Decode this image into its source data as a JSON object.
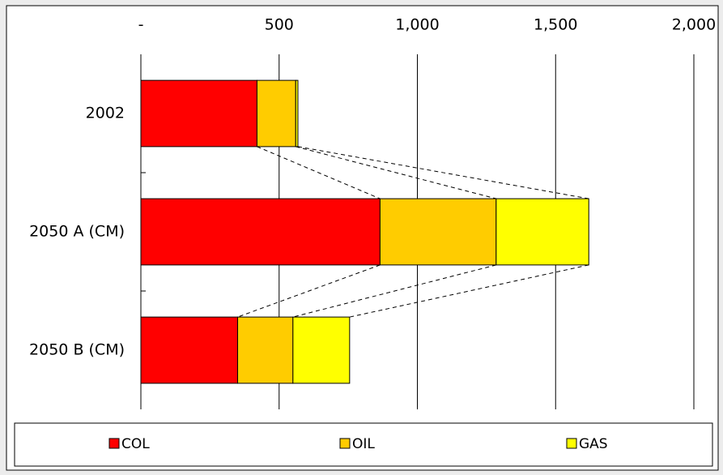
{
  "chart_data": {
    "type": "stacked-barh",
    "categories": [
      "2002",
      "2050 A (CM)",
      "2050 B (CM)"
    ],
    "series": [
      {
        "name": "COL",
        "color": "#ff0000",
        "values": [
          420,
          865,
          350
        ]
      },
      {
        "name": "OIL",
        "color": "#ffcc00",
        "values": [
          140,
          420,
          200
        ]
      },
      {
        "name": "GAS",
        "color": "#ffff00",
        "values": [
          8,
          335,
          205
        ]
      }
    ],
    "xlim": [
      0,
      2000
    ],
    "xticks": [
      {
        "value": 0,
        "label": "-"
      },
      500,
      {
        "value": 1000,
        "label": "1,000"
      },
      {
        "value": 1500,
        "label": "1,500"
      },
      {
        "value": 2000,
        "label": "2,000"
      }
    ],
    "grid": true,
    "legend": "bottom"
  }
}
